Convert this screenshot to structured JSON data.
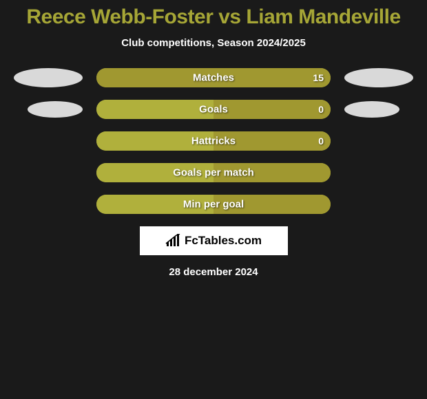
{
  "title": "Reece Webb-Foster vs Liam Mandeville",
  "subtitle": "Club competitions, Season 2024/2025",
  "colors": {
    "background": "#1a1a1a",
    "accent": "#a6a636",
    "bar_left": "#b0b03c",
    "bar_right": "#a09830",
    "ellipse_left": "#d9d9d9",
    "ellipse_right": "#d9d9d9",
    "text": "#ffffff"
  },
  "ellipses": {
    "row0_left": {
      "w": 100,
      "h": 28
    },
    "row0_right": {
      "w": 100,
      "h": 28
    },
    "row1_left": {
      "w": 80,
      "h": 24
    },
    "row1_right": {
      "w": 80,
      "h": 24
    }
  },
  "stats": [
    {
      "label": "Matches",
      "left_val": "",
      "right_val": "15",
      "left_pct": 0,
      "right_pct": 100,
      "show_left_ellipse": true,
      "show_right_ellipse": true
    },
    {
      "label": "Goals",
      "left_val": "",
      "right_val": "0",
      "left_pct": 50,
      "right_pct": 50,
      "show_left_ellipse": true,
      "show_right_ellipse": true
    },
    {
      "label": "Hattricks",
      "left_val": "",
      "right_val": "0",
      "left_pct": 50,
      "right_pct": 50,
      "show_left_ellipse": false,
      "show_right_ellipse": false
    },
    {
      "label": "Goals per match",
      "left_val": "",
      "right_val": "",
      "left_pct": 50,
      "right_pct": 50,
      "show_left_ellipse": false,
      "show_right_ellipse": false
    },
    {
      "label": "Min per goal",
      "left_val": "",
      "right_val": "",
      "left_pct": 50,
      "right_pct": 50,
      "show_left_ellipse": false,
      "show_right_ellipse": false
    }
  ],
  "brand": "FcTables.com",
  "date": "28 december 2024"
}
